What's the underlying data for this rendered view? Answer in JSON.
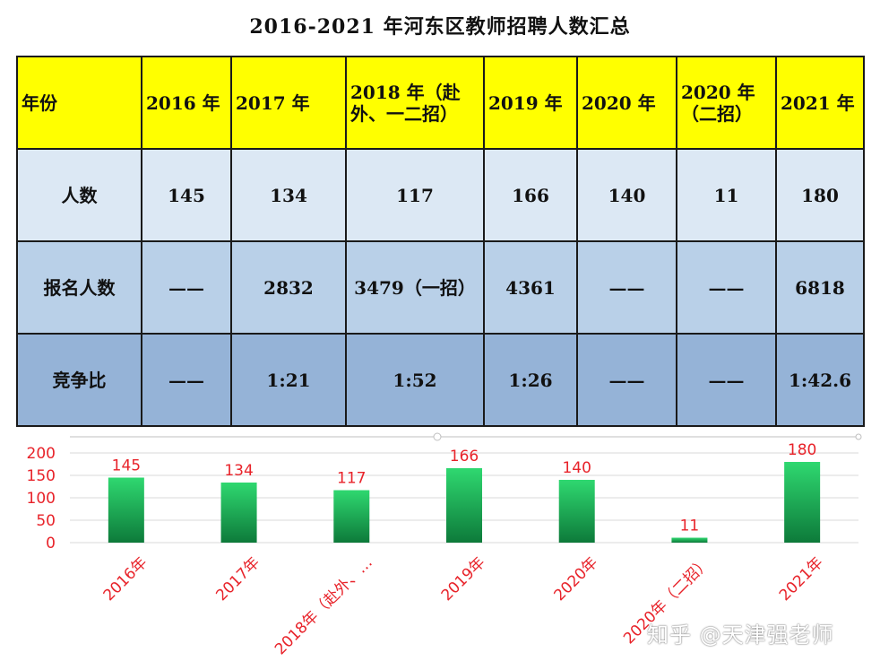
{
  "title": "2016-2021 年河东区教师招聘人数汇总",
  "table": {
    "header": [
      "年份",
      "2016 年",
      "2017 年",
      "2018 年（赴外、一二招）",
      "2019 年",
      "2020 年",
      "2020 年（二招）",
      "2021 年"
    ],
    "rows": [
      [
        "人数",
        "145",
        "134",
        "117",
        "166",
        "140",
        "11",
        "180"
      ],
      [
        "报名人数",
        "——",
        "2832",
        "3479（一招）",
        "4361",
        "——",
        "——",
        "6818"
      ],
      [
        "竞争比",
        "——",
        "1:21",
        "1:52",
        "1:26",
        "——",
        "——",
        "1:42.6"
      ]
    ]
  },
  "chart_data": {
    "type": "bar",
    "categories": [
      "2016年",
      "2017年",
      "2018年（赴外、…",
      "2019年",
      "2020年",
      "2020年（二招）",
      "2021年"
    ],
    "values": [
      145,
      134,
      117,
      166,
      140,
      11,
      180
    ],
    "yticks": [
      "0",
      "50",
      "100",
      "150",
      "200"
    ],
    "ylim": [
      0,
      200
    ],
    "colors": {
      "bar_top": "#2fd870",
      "bar_bottom": "#0d7a3a",
      "label": "#e8232a",
      "grid": "#d9d9d9"
    }
  },
  "watermark": "知乎 @天津强老师"
}
